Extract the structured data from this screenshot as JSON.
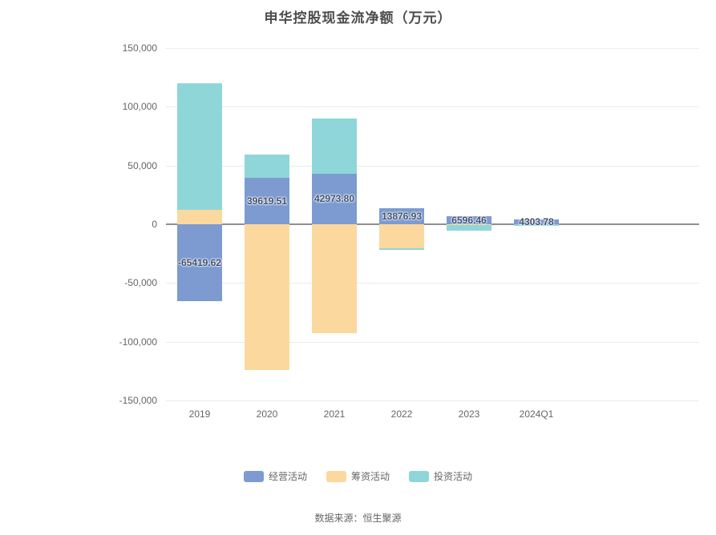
{
  "title": "申华控股现金流净额（万元）",
  "footer": {
    "source": "数据来源：恒生聚源"
  },
  "colors": {
    "title_text": "#4d4d4d",
    "axis_label": "#666666",
    "grid_line": "#ebebeb",
    "zero_line": "#8f8f8f",
    "data_label": "#40506b",
    "operating_blue": "#7d9bd0",
    "financing_orange": "#fbd89e",
    "investing_teal": "#8fd6d8"
  },
  "chart_data": {
    "type": "bar",
    "stacked": true,
    "title": "申华控股现金流净额（万元）",
    "unit": "万元",
    "categories": [
      "2019",
      "2020",
      "2021",
      "2022",
      "2023",
      "2024Q1"
    ],
    "series": [
      {
        "name": "经营活动",
        "color": "#7d9bd0",
        "values": [
          -65419.62,
          39619.51,
          42973.8,
          13876.93,
          6596.46,
          4303.78
        ]
      },
      {
        "name": "筹资活动",
        "color": "#fbd89e",
        "values": [
          12000,
          -124000,
          -93000,
          -20500,
          -600,
          -300
        ]
      },
      {
        "name": "投资活动",
        "color": "#8fd6d8",
        "values": [
          108000,
          20000,
          47000,
          -1500,
          -5000,
          -1200
        ]
      }
    ],
    "labels": {
      "series": "经营活动",
      "values": [
        "-65419.62",
        "39619.51",
        "42973.80",
        "13876.93",
        "6596.46",
        "4303.78"
      ]
    },
    "ylim": [
      -150000,
      150000
    ],
    "yticks": [
      {
        "value": 150000,
        "label": "150,000"
      },
      {
        "value": 100000,
        "label": "100,000"
      },
      {
        "value": 50000,
        "label": "50,000"
      },
      {
        "value": 0,
        "label": "0"
      },
      {
        "value": -50000,
        "label": "-50,000"
      },
      {
        "value": -100000,
        "label": "-100,000"
      },
      {
        "value": -150000,
        "label": "-150,000"
      }
    ],
    "grid": true,
    "legend_position": "bottom"
  }
}
